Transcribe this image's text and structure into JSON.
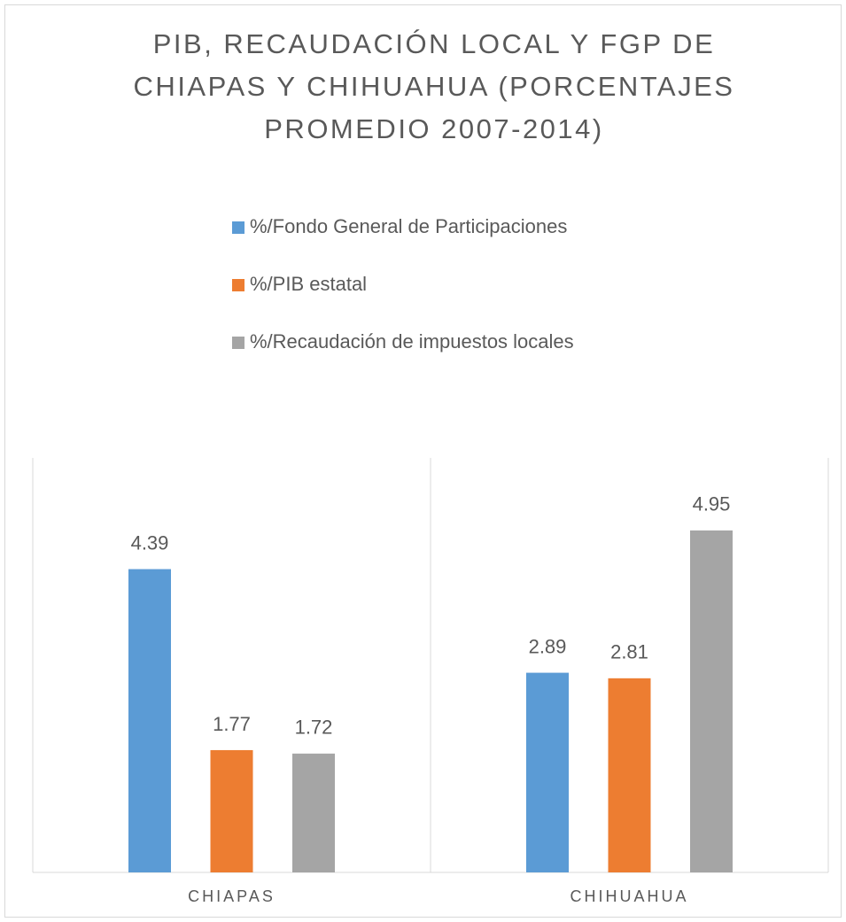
{
  "chart_data": {
    "type": "bar",
    "title": [
      "PIB, RECAUDACIÓN LOCAL Y FGP DE",
      "CHIAPAS Y CHIHUAHUA (PORCENTAJES",
      "PROMEDIO 2007-2014)"
    ],
    "categories": [
      "CHIAPAS",
      "CHIHUAHUA"
    ],
    "series": [
      {
        "name": "%/Fondo General de Participaciones",
        "color": "#5b9bd5",
        "values": [
          4.39,
          2.89
        ]
      },
      {
        "name": "%/PIB estatal",
        "color": "#ed7d31",
        "values": [
          1.77,
          2.81
        ]
      },
      {
        "name": "%/Recaudación de impuestos locales",
        "color": "#a5a5a5",
        "values": [
          1.72,
          4.95
        ]
      }
    ],
    "ylim": [
      0,
      6
    ],
    "legend": "top"
  }
}
